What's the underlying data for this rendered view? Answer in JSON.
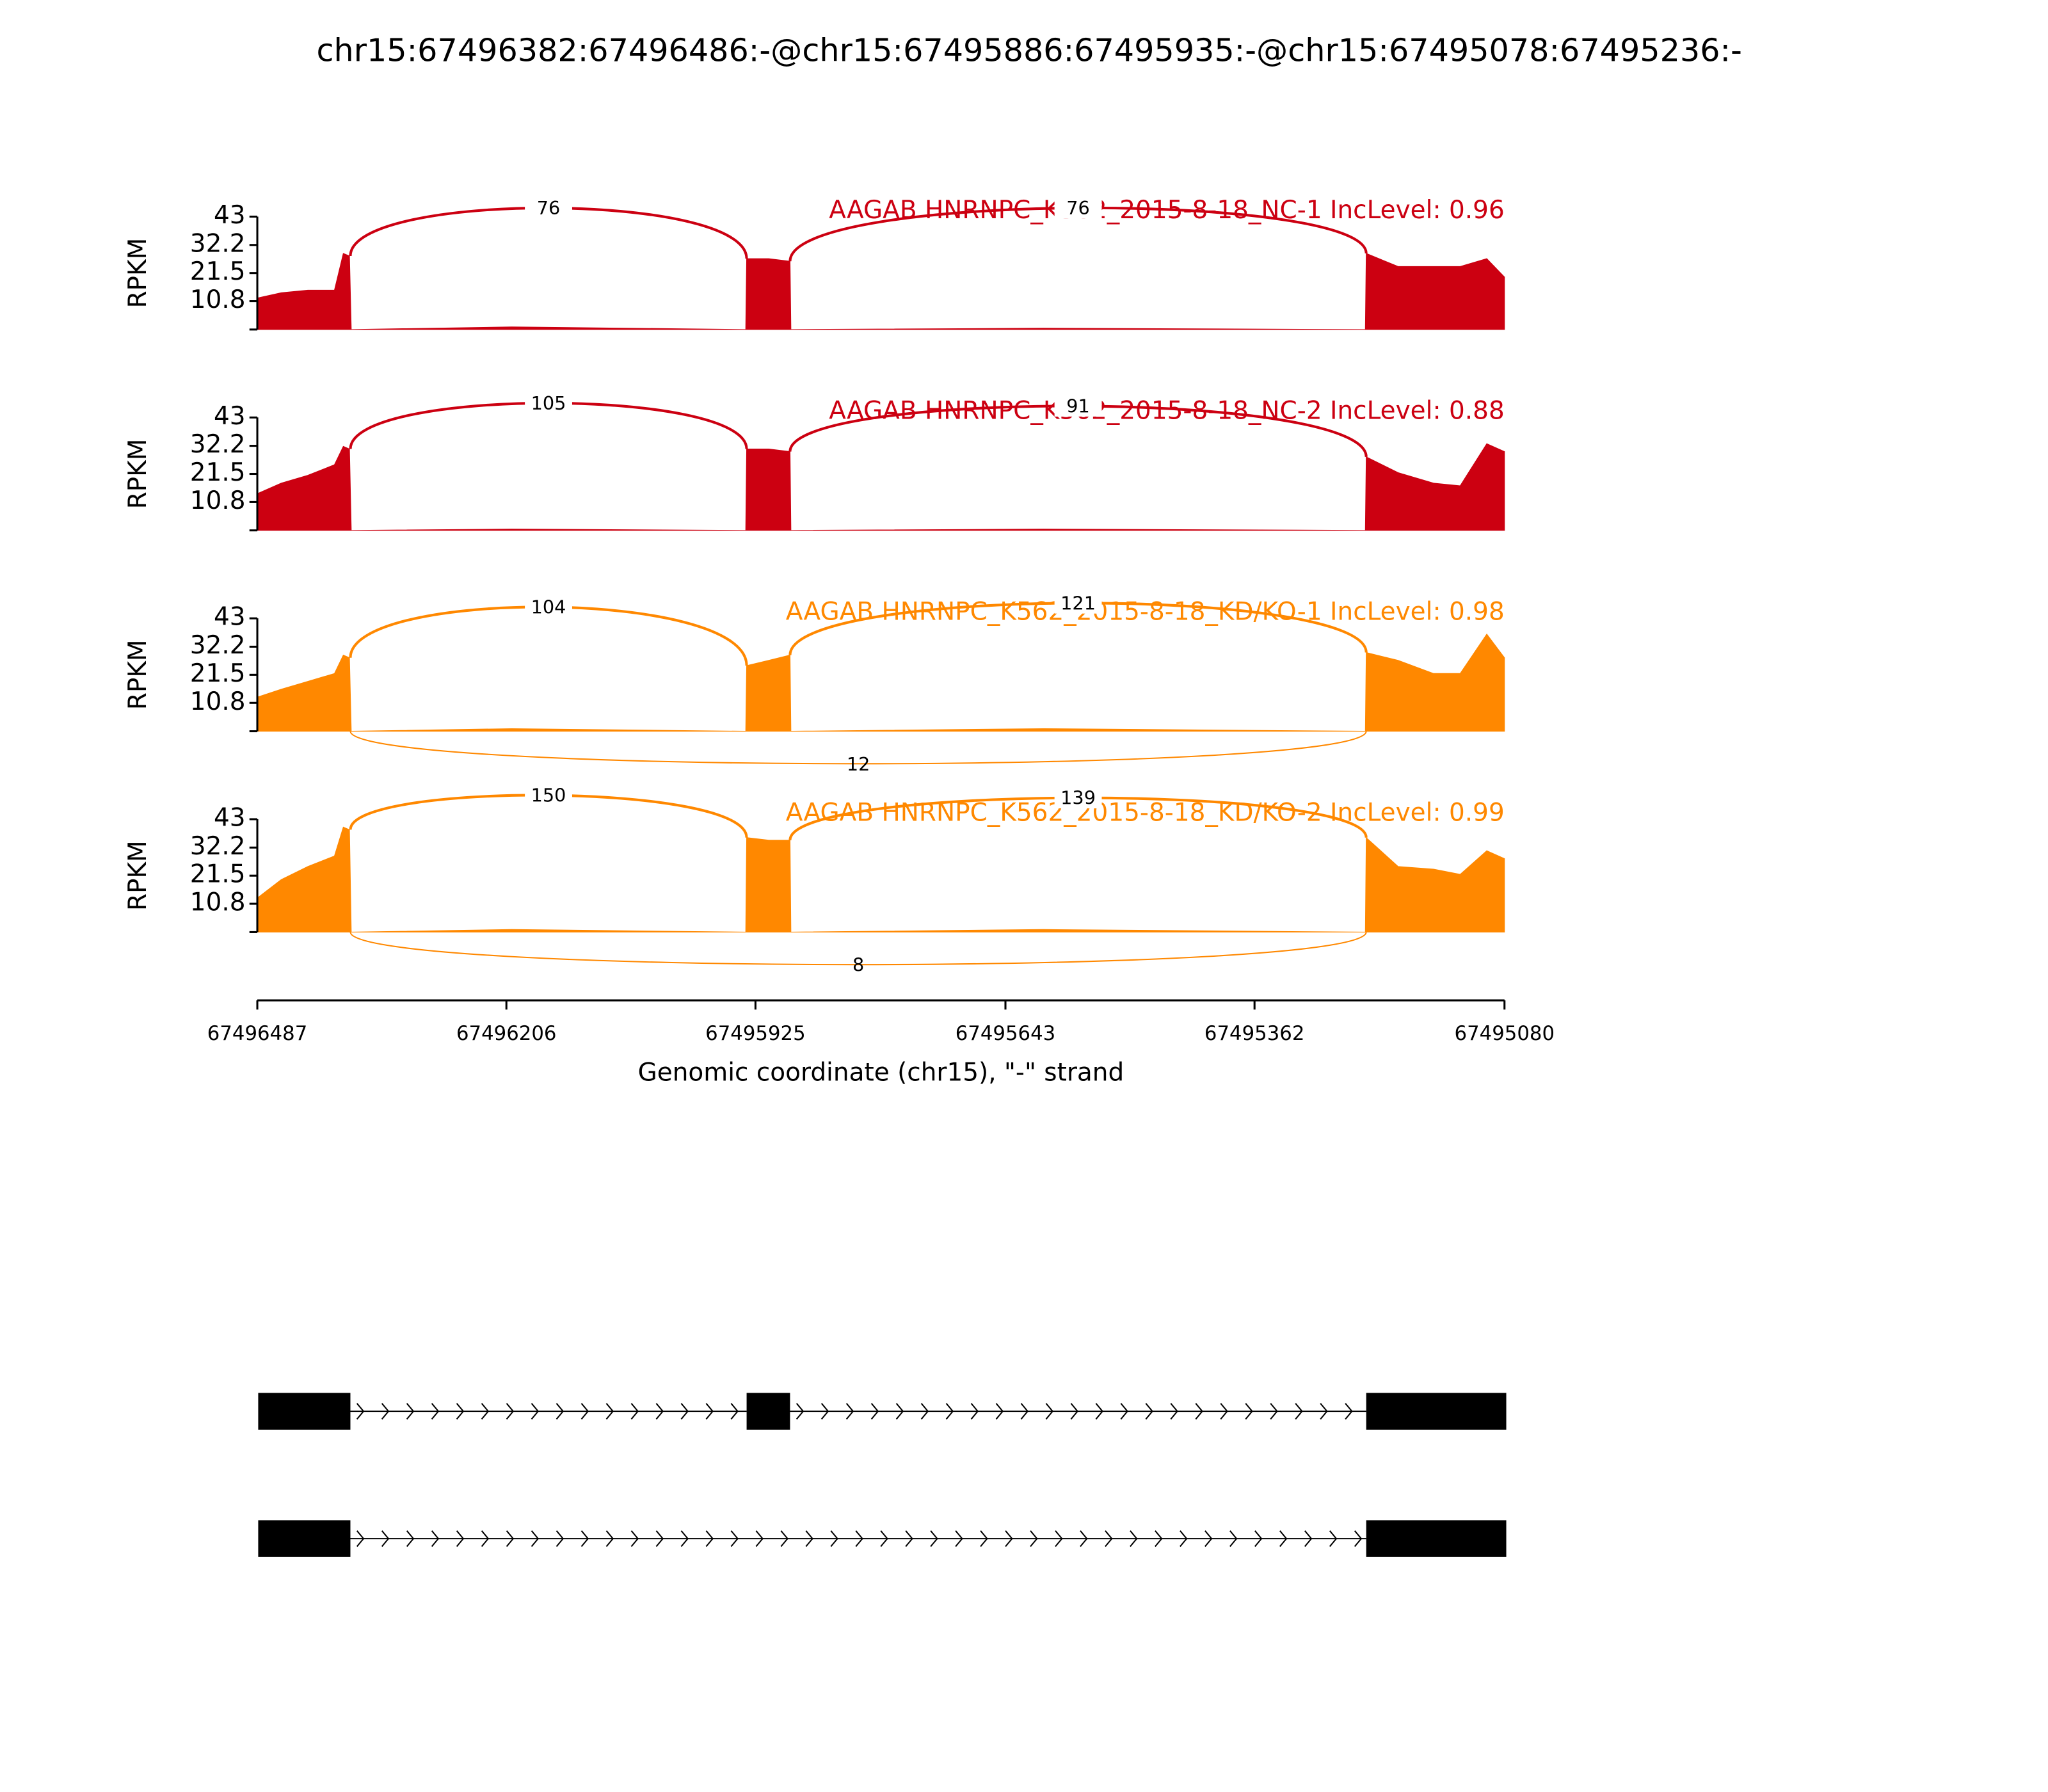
{
  "chart_data": {
    "type": "sashimi",
    "title": "chr15:67496382:67496486:-@chr15:67495886:67495935:-@chr15:67495078:67495236:-",
    "xlabel": "Genomic coordinate (chr15), \"-\" strand",
    "ylabel": "RPKM",
    "xlim": [
      67496487,
      67495080
    ],
    "xticks": [
      67496487,
      67496206,
      67495925,
      67495643,
      67495362,
      67495080
    ],
    "ylim": [
      0,
      43
    ],
    "yticks": [
      10.8,
      21.5,
      32.2,
      43
    ],
    "x": [
      67496487,
      67496460,
      67496430,
      67496400,
      67496390,
      67496383,
      67496381,
      67496200,
      67495936,
      67495935,
      67495910,
      67495886,
      67495885,
      67495600,
      67495237,
      67495236,
      67495200,
      67495160,
      67495130,
      67495100,
      67495080
    ],
    "panels": [
      {
        "name": "AAGAB HNRNPC_K562_2015-8-18_NC-1 IncLevel: 0.96",
        "color": "#cc0011",
        "values": [
          12,
          14,
          15,
          15,
          29,
          28,
          0,
          1,
          0,
          27,
          27,
          26,
          0,
          0.5,
          0,
          29,
          24,
          24,
          24,
          27,
          20
        ],
        "junctions": [
          {
            "start": 67496382,
            "end": 67495935,
            "value": 76
          },
          {
            "start": 67495886,
            "end": 67495236,
            "value": 76
          }
        ]
      },
      {
        "name": "AAGAB HNRNPC_K562_2015-8-18_NC-2 IncLevel: 0.88",
        "color": "#cc0011",
        "values": [
          14,
          18,
          21,
          25,
          32,
          31,
          0,
          0.5,
          0,
          31,
          31,
          30,
          0,
          0.5,
          0,
          28,
          22,
          18,
          17,
          33,
          30
        ],
        "junctions": [
          {
            "start": 67496382,
            "end": 67495935,
            "value": 105
          },
          {
            "start": 67495886,
            "end": 67495236,
            "value": 91
          }
        ]
      },
      {
        "name": "AAGAB HNRNPC_K562_2015-8-18_KD/KO-1 IncLevel: 0.98",
        "color": "#ff8800",
        "values": [
          13,
          16,
          19,
          22,
          29,
          28,
          0,
          1,
          0,
          25,
          27,
          29,
          0,
          1,
          0,
          30,
          27,
          22,
          22,
          37,
          28
        ],
        "junctions": [
          {
            "start": 67496382,
            "end": 67495935,
            "value": 104
          },
          {
            "start": 67495886,
            "end": 67495236,
            "value": 121
          },
          {
            "start": 67496382,
            "end": 67495236,
            "value": 12
          }
        ]
      },
      {
        "name": "AAGAB HNRNPC_K562_2015-8-18_KD/KO-2 IncLevel: 0.99",
        "color": "#ff8800",
        "values": [
          13,
          20,
          25,
          29,
          40,
          39,
          0,
          1,
          0,
          36,
          35,
          35,
          0,
          1,
          0,
          36,
          25,
          24,
          22,
          31,
          28
        ],
        "junctions": [
          {
            "start": 67496382,
            "end": 67495935,
            "value": 150
          },
          {
            "start": 67495886,
            "end": 67495236,
            "value": 139
          },
          {
            "start": 67496382,
            "end": 67495236,
            "value": 8
          }
        ]
      }
    ],
    "transcripts": [
      {
        "exons": [
          [
            67496486,
            67496382
          ],
          [
            67495935,
            67495886
          ],
          [
            67495236,
            67495078
          ]
        ]
      },
      {
        "exons": [
          [
            67496486,
            67496382
          ],
          [
            67495236,
            67495078
          ]
        ]
      }
    ]
  }
}
